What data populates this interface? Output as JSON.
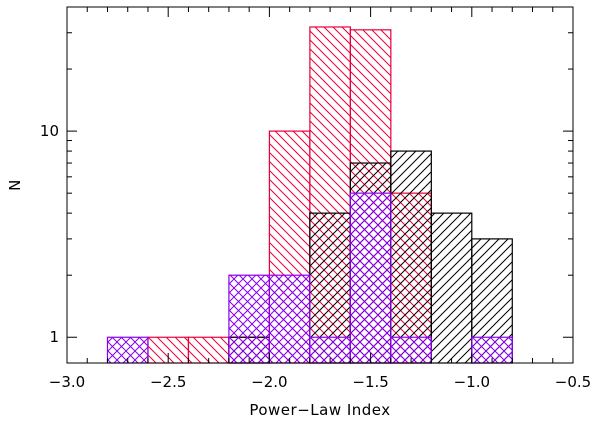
{
  "chart_data": {
    "type": "histogram",
    "xlabel": "Power−Law Index",
    "ylabel": "N",
    "xlim": [
      -3.0,
      -0.5
    ],
    "ylim": [
      0.75,
      40
    ],
    "y_scale": "log",
    "grid": false,
    "legend": "none",
    "x_ticks": [
      {
        "value": -3.0,
        "label": "−3.0"
      },
      {
        "value": -2.5,
        "label": "−2.5"
      },
      {
        "value": -2.0,
        "label": "−2.0"
      },
      {
        "value": -1.5,
        "label": "−1.5"
      },
      {
        "value": -1.0,
        "label": "−1.0"
      },
      {
        "value": -0.5,
        "label": "−0.5"
      }
    ],
    "y_ticks": [
      {
        "value": 1,
        "label": "1"
      },
      {
        "value": 10,
        "label": "10"
      }
    ],
    "bin_width": 0.2,
    "series": [
      {
        "color": "#e8003c",
        "hatch": "diagonal-down",
        "bins": [
          {
            "x0": -2.6,
            "count": 1
          },
          {
            "x0": -2.4,
            "count": 1
          },
          {
            "x0": -2.2,
            "count": 1
          },
          {
            "x0": -2.0,
            "count": 10
          },
          {
            "x0": -1.8,
            "count": 32
          },
          {
            "x0": -1.6,
            "count": 31
          },
          {
            "x0": -1.4,
            "count": 5
          }
        ]
      },
      {
        "color": "#000000",
        "hatch": "diagonal-up",
        "bins": [
          {
            "x0": -2.2,
            "count": 1
          },
          {
            "x0": -1.8,
            "count": 4
          },
          {
            "x0": -1.6,
            "count": 7
          },
          {
            "x0": -1.4,
            "count": 8
          },
          {
            "x0": -1.2,
            "count": 4
          },
          {
            "x0": -1.0,
            "count": 3
          }
        ]
      },
      {
        "color": "#8800ee",
        "hatch": "diagonal-both",
        "bins": [
          {
            "x0": -2.8,
            "count": 1
          },
          {
            "x0": -2.2,
            "count": 2
          },
          {
            "x0": -2.0,
            "count": 2
          },
          {
            "x0": -1.8,
            "count": 1
          },
          {
            "x0": -1.6,
            "count": 5
          },
          {
            "x0": -1.4,
            "count": 1
          },
          {
            "x0": -1.0,
            "count": 1
          }
        ]
      }
    ]
  }
}
